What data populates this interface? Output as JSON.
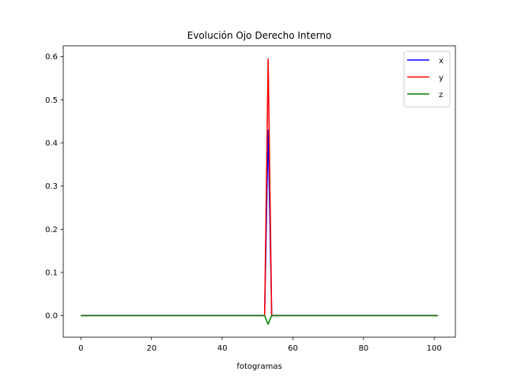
{
  "chart_data": {
    "type": "line",
    "title": "Evolución Ojo Derecho Interno",
    "xlabel": "fotogramas",
    "ylabel": "",
    "xlim": [
      -5,
      106
    ],
    "ylim": [
      -0.05,
      0.625
    ],
    "xticks": [
      0,
      20,
      40,
      60,
      80,
      100
    ],
    "yticks": [
      0.0,
      0.1,
      0.2,
      0.3,
      0.4,
      0.5,
      0.6
    ],
    "grid": false,
    "legend_position": "top-right",
    "series": [
      {
        "name": "x",
        "color": "#0000ff",
        "points": [
          [
            0,
            0
          ],
          [
            52,
            0
          ],
          [
            53,
            0.43
          ],
          [
            54,
            0
          ],
          [
            101,
            0
          ]
        ]
      },
      {
        "name": "y",
        "color": "#ff0000",
        "points": [
          [
            0,
            0
          ],
          [
            52,
            0
          ],
          [
            53,
            0.595
          ],
          [
            54,
            0
          ],
          [
            101,
            0
          ]
        ]
      },
      {
        "name": "z",
        "color": "#008000",
        "points": [
          [
            0,
            0
          ],
          [
            52,
            0
          ],
          [
            53,
            -0.02
          ],
          [
            54,
            0
          ],
          [
            101,
            0
          ]
        ]
      }
    ]
  }
}
